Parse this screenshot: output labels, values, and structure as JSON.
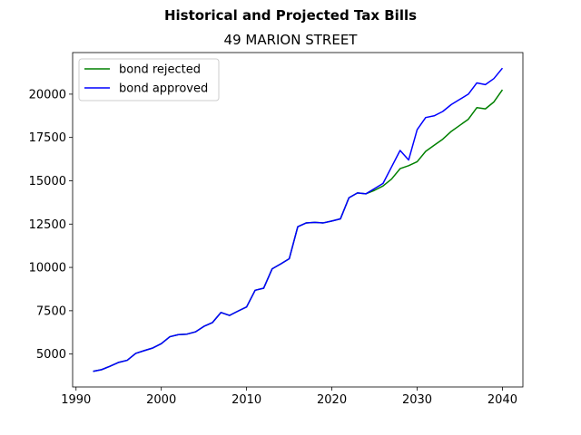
{
  "chart_data": {
    "type": "line",
    "title": "Historical and Projected Tax Bills",
    "subtitle": "49 MARION STREET",
    "xlabel": "",
    "ylabel": "",
    "xlim": [
      1989.6,
      2042.4
    ],
    "ylim": [
      3100,
      22400
    ],
    "xticks": [
      1990,
      2000,
      2010,
      2020,
      2030,
      2040
    ],
    "xtick_labels": [
      "1990",
      "2000",
      "2010",
      "2020",
      "2030",
      "2040"
    ],
    "yticks": [
      5000,
      7500,
      10000,
      12500,
      15000,
      17500,
      20000
    ],
    "ytick_labels": [
      "5000",
      "7500",
      "10000",
      "12500",
      "15000",
      "17500",
      "20000"
    ],
    "grid": false,
    "legend_position": "upper left",
    "series": [
      {
        "name": "bond rejected",
        "color": "#008000",
        "x": [
          1992,
          1993,
          1994,
          1995,
          1996,
          1997,
          1998,
          1999,
          2000,
          2001,
          2002,
          2003,
          2004,
          2005,
          2006,
          2007,
          2008,
          2009,
          2010,
          2011,
          2012,
          2013,
          2014,
          2015,
          2016,
          2017,
          2018,
          2019,
          2020,
          2021,
          2022,
          2023,
          2024,
          2025,
          2026,
          2027,
          2028,
          2029,
          2030,
          2031,
          2032,
          2033,
          2034,
          2035,
          2036,
          2037,
          2038,
          2039,
          2040
        ],
        "y": [
          4000,
          4100,
          4300,
          4520,
          4640,
          5040,
          5200,
          5350,
          5600,
          6000,
          6120,
          6150,
          6280,
          6600,
          6820,
          7400,
          7230,
          7480,
          7720,
          8680,
          8800,
          9920,
          10200,
          10500,
          12350,
          12570,
          12600,
          12570,
          12680,
          12800,
          14020,
          14300,
          14250,
          14450,
          14700,
          15100,
          15700,
          15870,
          16100,
          16700,
          17050,
          17400,
          17850,
          18200,
          18550,
          19220,
          19150,
          19550,
          20250
        ]
      },
      {
        "name": "bond approved",
        "color": "#0000ff",
        "x": [
          1992,
          1993,
          1994,
          1995,
          1996,
          1997,
          1998,
          1999,
          2000,
          2001,
          2002,
          2003,
          2004,
          2005,
          2006,
          2007,
          2008,
          2009,
          2010,
          2011,
          2012,
          2013,
          2014,
          2015,
          2016,
          2017,
          2018,
          2019,
          2020,
          2021,
          2022,
          2023,
          2024,
          2025,
          2026,
          2027,
          2028,
          2029,
          2030,
          2031,
          2032,
          2033,
          2034,
          2035,
          2036,
          2037,
          2038,
          2039,
          2040
        ],
        "y": [
          4000,
          4100,
          4300,
          4520,
          4640,
          5040,
          5200,
          5350,
          5600,
          6000,
          6120,
          6150,
          6280,
          6600,
          6820,
          7400,
          7230,
          7480,
          7720,
          8680,
          8800,
          9920,
          10200,
          10500,
          12350,
          12570,
          12600,
          12570,
          12680,
          12800,
          14020,
          14300,
          14250,
          14550,
          14850,
          15800,
          16750,
          16200,
          17950,
          18650,
          18750,
          19000,
          19400,
          19700,
          20000,
          20650,
          20550,
          20900,
          21500
        ]
      }
    ]
  }
}
